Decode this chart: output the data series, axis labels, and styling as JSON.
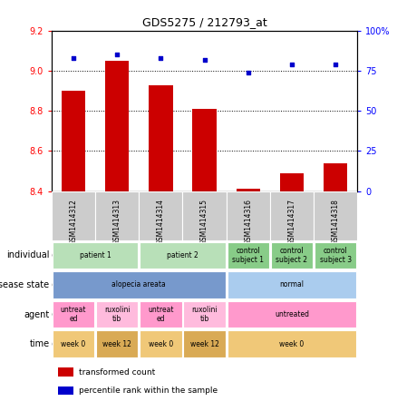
{
  "title": "GDS5275 / 212793_at",
  "samples": [
    "GSM1414312",
    "GSM1414313",
    "GSM1414314",
    "GSM1414315",
    "GSM1414316",
    "GSM1414317",
    "GSM1414318"
  ],
  "transformed_count": [
    8.9,
    9.05,
    8.93,
    8.81,
    8.41,
    8.49,
    8.54
  ],
  "percentile_rank": [
    83,
    85,
    83,
    82,
    74,
    79,
    79
  ],
  "ylim_left": [
    8.4,
    9.2
  ],
  "ylim_right": [
    0,
    100
  ],
  "yticks_left": [
    8.4,
    8.6,
    8.8,
    9.0,
    9.2
  ],
  "yticks_right": [
    0,
    25,
    50,
    75,
    100
  ],
  "bar_color": "#cc0000",
  "dot_color": "#0000cc",
  "sample_box_color": "#cccccc",
  "annotation_rows": [
    {
      "label": "individual",
      "cells": [
        {
          "text": "patient 1",
          "span": 2,
          "color": "#b8e0b8"
        },
        {
          "text": "patient 2",
          "span": 2,
          "color": "#b8e0b8"
        },
        {
          "text": "control\nsubject 1",
          "span": 1,
          "color": "#88cc88"
        },
        {
          "text": "control\nsubject 2",
          "span": 1,
          "color": "#88cc88"
        },
        {
          "text": "control\nsubject 3",
          "span": 1,
          "color": "#88cc88"
        }
      ]
    },
    {
      "label": "disease state",
      "cells": [
        {
          "text": "alopecia areata",
          "span": 4,
          "color": "#7799cc"
        },
        {
          "text": "normal",
          "span": 3,
          "color": "#aaccee"
        }
      ]
    },
    {
      "label": "agent",
      "cells": [
        {
          "text": "untreat\ned",
          "span": 1,
          "color": "#ff99cc"
        },
        {
          "text": "ruxolini\ntib",
          "span": 1,
          "color": "#ffbbdd"
        },
        {
          "text": "untreat\ned",
          "span": 1,
          "color": "#ff99cc"
        },
        {
          "text": "ruxolini\ntib",
          "span": 1,
          "color": "#ffbbdd"
        },
        {
          "text": "untreated",
          "span": 3,
          "color": "#ff99cc"
        }
      ]
    },
    {
      "label": "time",
      "cells": [
        {
          "text": "week 0",
          "span": 1,
          "color": "#f0c878"
        },
        {
          "text": "week 12",
          "span": 1,
          "color": "#d9aa55"
        },
        {
          "text": "week 0",
          "span": 1,
          "color": "#f0c878"
        },
        {
          "text": "week 12",
          "span": 1,
          "color": "#d9aa55"
        },
        {
          "text": "week 0",
          "span": 3,
          "color": "#f0c878"
        }
      ]
    }
  ],
  "legend": [
    {
      "color": "#cc0000",
      "label": "transformed count"
    },
    {
      "color": "#0000cc",
      "label": "percentile rank within the sample"
    }
  ]
}
